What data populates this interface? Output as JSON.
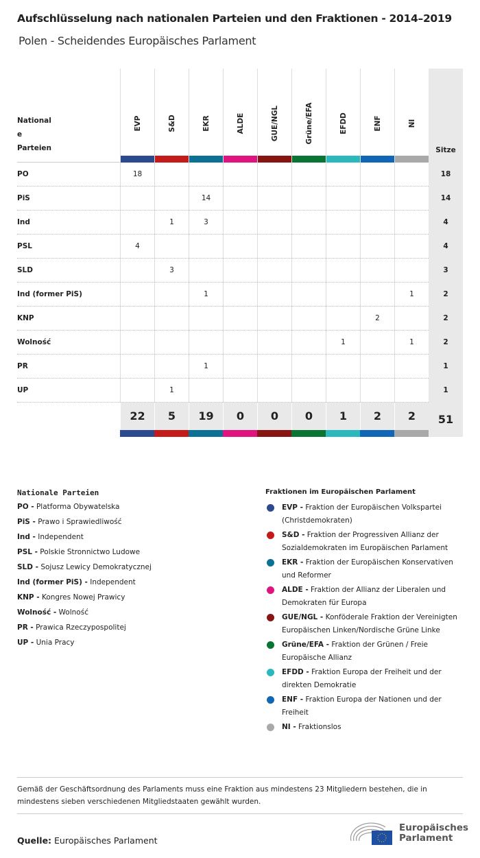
{
  "title": "Aufschlüsselung nach nationalen Parteien und den Fraktionen - 2014–2019",
  "subtitle": "Polen - Scheidendes Europäisches Parlament",
  "table": {
    "party_header": [
      "National",
      "e",
      "Parteien"
    ],
    "seats_header": "Sitze",
    "groups": [
      {
        "label": "EVP",
        "color": "#2c4a8f"
      },
      {
        "label": "S&D",
        "color": "#c41a1a"
      },
      {
        "label": "EKR",
        "color": "#0d7196"
      },
      {
        "label": "ALDE",
        "color": "#e0147e"
      },
      {
        "label": "GUE/NGL",
        "color": "#861514"
      },
      {
        "label": "Grüne/EFA",
        "color": "#0a7433"
      },
      {
        "label": "EFDD",
        "color": "#2bb9bd"
      },
      {
        "label": "ENF",
        "color": "#1067b5"
      },
      {
        "label": "NI",
        "color": "#a9a9a9"
      }
    ],
    "rows": [
      {
        "party": "PO",
        "values": [
          "18",
          "",
          "",
          "",
          "",
          "",
          "",
          "",
          ""
        ],
        "total": "18"
      },
      {
        "party": "PiS",
        "values": [
          "",
          "",
          "14",
          "",
          "",
          "",
          "",
          "",
          ""
        ],
        "total": "14"
      },
      {
        "party": "Ind",
        "values": [
          "",
          "1",
          "3",
          "",
          "",
          "",
          "",
          "",
          ""
        ],
        "total": "4"
      },
      {
        "party": "PSL",
        "values": [
          "4",
          "",
          "",
          "",
          "",
          "",
          "",
          "",
          ""
        ],
        "total": "4"
      },
      {
        "party": "SLD",
        "values": [
          "",
          "3",
          "",
          "",
          "",
          "",
          "",
          "",
          ""
        ],
        "total": "3"
      },
      {
        "party": "Ind (former PiS)",
        "values": [
          "",
          "",
          "1",
          "",
          "",
          "",
          "",
          "",
          "1"
        ],
        "total": "2"
      },
      {
        "party": "KNP",
        "values": [
          "",
          "",
          "",
          "",
          "",
          "",
          "",
          "2",
          ""
        ],
        "total": "2"
      },
      {
        "party": "Wolność",
        "values": [
          "",
          "",
          "",
          "",
          "",
          "",
          "1",
          "",
          "1"
        ],
        "total": "2"
      },
      {
        "party": "PR",
        "values": [
          "",
          "",
          "1",
          "",
          "",
          "",
          "",
          "",
          ""
        ],
        "total": "1"
      },
      {
        "party": "UP",
        "values": [
          "",
          "1",
          "",
          "",
          "",
          "",
          "",
          "",
          ""
        ],
        "total": "1"
      }
    ],
    "totals": [
      "22",
      "5",
      "19",
      "0",
      "0",
      "0",
      "1",
      "2",
      "2"
    ],
    "grand_total": "51"
  },
  "legend_parties": {
    "title": "Nationale Parteien",
    "items": [
      {
        "abbr": "PO -",
        "name": " Platforma Obywatelska"
      },
      {
        "abbr": "PiS -",
        "name": " Prawo i Sprawiedliwość"
      },
      {
        "abbr": "Ind -",
        "name": " Independent"
      },
      {
        "abbr": "PSL -",
        "name": " Polskie Stronnictwo Ludowe"
      },
      {
        "abbr": "SLD -",
        "name": " Sojusz Lewicy Demokratycznej"
      },
      {
        "abbr": "Ind (former PiS) -",
        "name": " Independent"
      },
      {
        "abbr": "KNP -",
        "name": " Kongres Nowej Prawicy"
      },
      {
        "abbr": "Wolność -",
        "name": " Wolność"
      },
      {
        "abbr": "PR -",
        "name": " Prawica Rzeczypospolitej"
      },
      {
        "abbr": "UP -",
        "name": " Unia Pracy"
      }
    ]
  },
  "legend_groups": {
    "title": "Fraktionen im Europäischen Parlament",
    "items": [
      {
        "abbr": "EVP -",
        "name": " Fraktion der Europäischen Volkspartei (Christdemokraten)",
        "color": "#2c4a8f"
      },
      {
        "abbr": "S&D -",
        "name": " Fraktion der Progressiven Allianz der Sozialdemokraten im Europäischen Parlament",
        "color": "#c41a1a"
      },
      {
        "abbr": "EKR -",
        "name": " Fraktion der Europäischen Konservativen und Reformer",
        "color": "#0d7196"
      },
      {
        "abbr": "ALDE -",
        "name": " Fraktion der Allianz der Liberalen und Demokraten für Europa",
        "color": "#e0147e"
      },
      {
        "abbr": "GUE/NGL -",
        "name": " Konföderale Fraktion der Vereinigten Europäischen Linken/Nordische Grüne Linke",
        "color": "#861514"
      },
      {
        "abbr": "Grüne/EFA -",
        "name": " Fraktion der Grünen / Freie Europäische Allianz",
        "color": "#0a7433"
      },
      {
        "abbr": "EFDD -",
        "name": " Fraktion Europa der Freiheit und der direkten Demokratie",
        "color": "#2bb9bd"
      },
      {
        "abbr": "ENF -",
        "name": " Fraktion Europa der Nationen und der Freiheit",
        "color": "#1067b5"
      },
      {
        "abbr": "NI -",
        "name": " Fraktionslos",
        "color": "#a9a9a9"
      }
    ]
  },
  "note": "Gemäß der Geschäftsordnung des Parlaments muss eine Fraktion aus mindestens 23 Mitgliedern bestehen, die in mindestens sieben verschiedenen Mitgliedstaaten gewählt wurden.",
  "source": {
    "label": "Quelle:",
    "value": " Europäisches Parlament"
  },
  "logo": {
    "line1": "Europäisches",
    "line2": "Parlament"
  }
}
